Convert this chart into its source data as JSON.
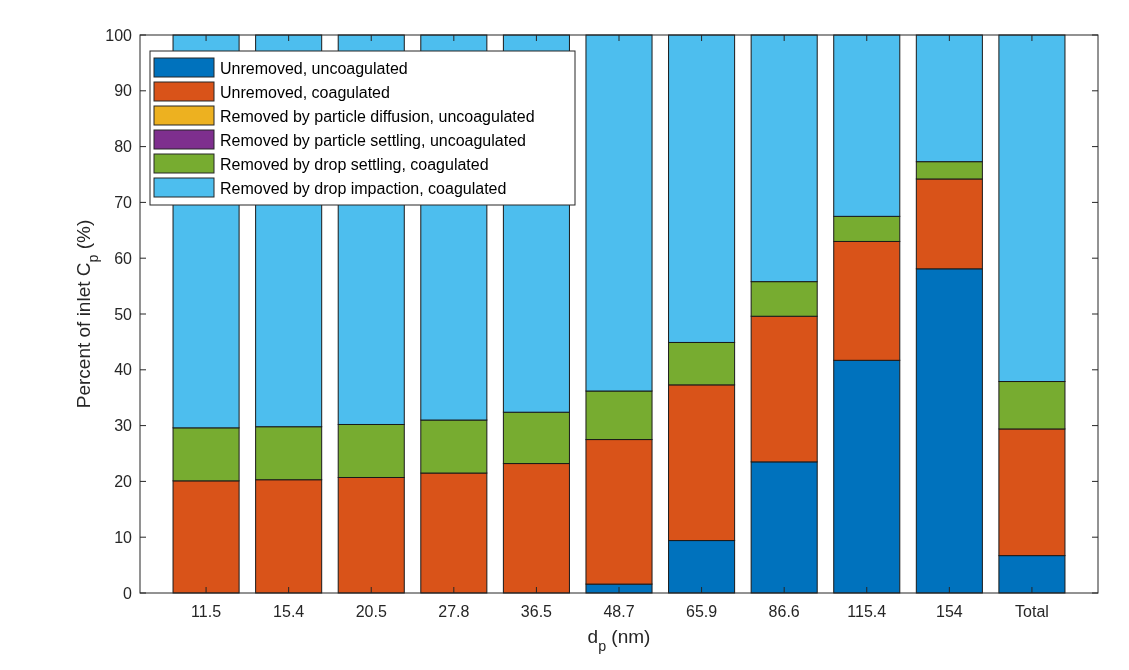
{
  "chart_data": {
    "type": "bar",
    "stacked": true,
    "xlabel": "d$_{p}$ (nm)",
    "ylabel": "Percent of inlet C$_{p}$ (%)",
    "categories": [
      "11.5",
      "15.4",
      "20.5",
      "27.8",
      "36.5",
      "48.7",
      "65.9",
      "86.6",
      "115.4",
      "154",
      "Total"
    ],
    "ylim": [
      0,
      100
    ],
    "yticks": [
      0,
      10,
      20,
      30,
      40,
      50,
      60,
      70,
      80,
      90,
      100
    ],
    "grid": false,
    "legend": "top left",
    "series": [
      {
        "name": "Unremoved, uncoagulated",
        "color": "#0072bd",
        "values": [
          0,
          0,
          0,
          0,
          0,
          1.6,
          9.4,
          23.5,
          41.7,
          58.1,
          6.7
        ]
      },
      {
        "name": "Unremoved, coagulated",
        "color": "#d95319",
        "values": [
          20.1,
          20.3,
          20.7,
          21.5,
          23.2,
          25.9,
          27.9,
          26.1,
          21.3,
          16.1,
          22.7
        ]
      },
      {
        "name": "Removed by particle diffusion, uncoagulated",
        "color": "#edb120",
        "values": [
          0,
          0,
          0,
          0,
          0,
          0,
          0,
          0,
          0,
          0,
          0
        ]
      },
      {
        "name": "Removed by particle settling, uncoagulated",
        "color": "#7e2f8e",
        "values": [
          0,
          0,
          0,
          0,
          0,
          0,
          0,
          0,
          0,
          0,
          0
        ]
      },
      {
        "name": "Removed by drop settling, coagulated",
        "color": "#77ac30",
        "values": [
          9.5,
          9.5,
          9.5,
          9.5,
          9.2,
          8.7,
          7.6,
          6.2,
          4.5,
          3.1,
          8.5
        ]
      },
      {
        "name": "Removed by drop impaction, coagulated",
        "color": "#4dbeee",
        "values": [
          70.4,
          70.2,
          69.8,
          69.0,
          67.6,
          63.8,
          55.1,
          44.2,
          32.5,
          22.7,
          62.1
        ]
      }
    ]
  }
}
